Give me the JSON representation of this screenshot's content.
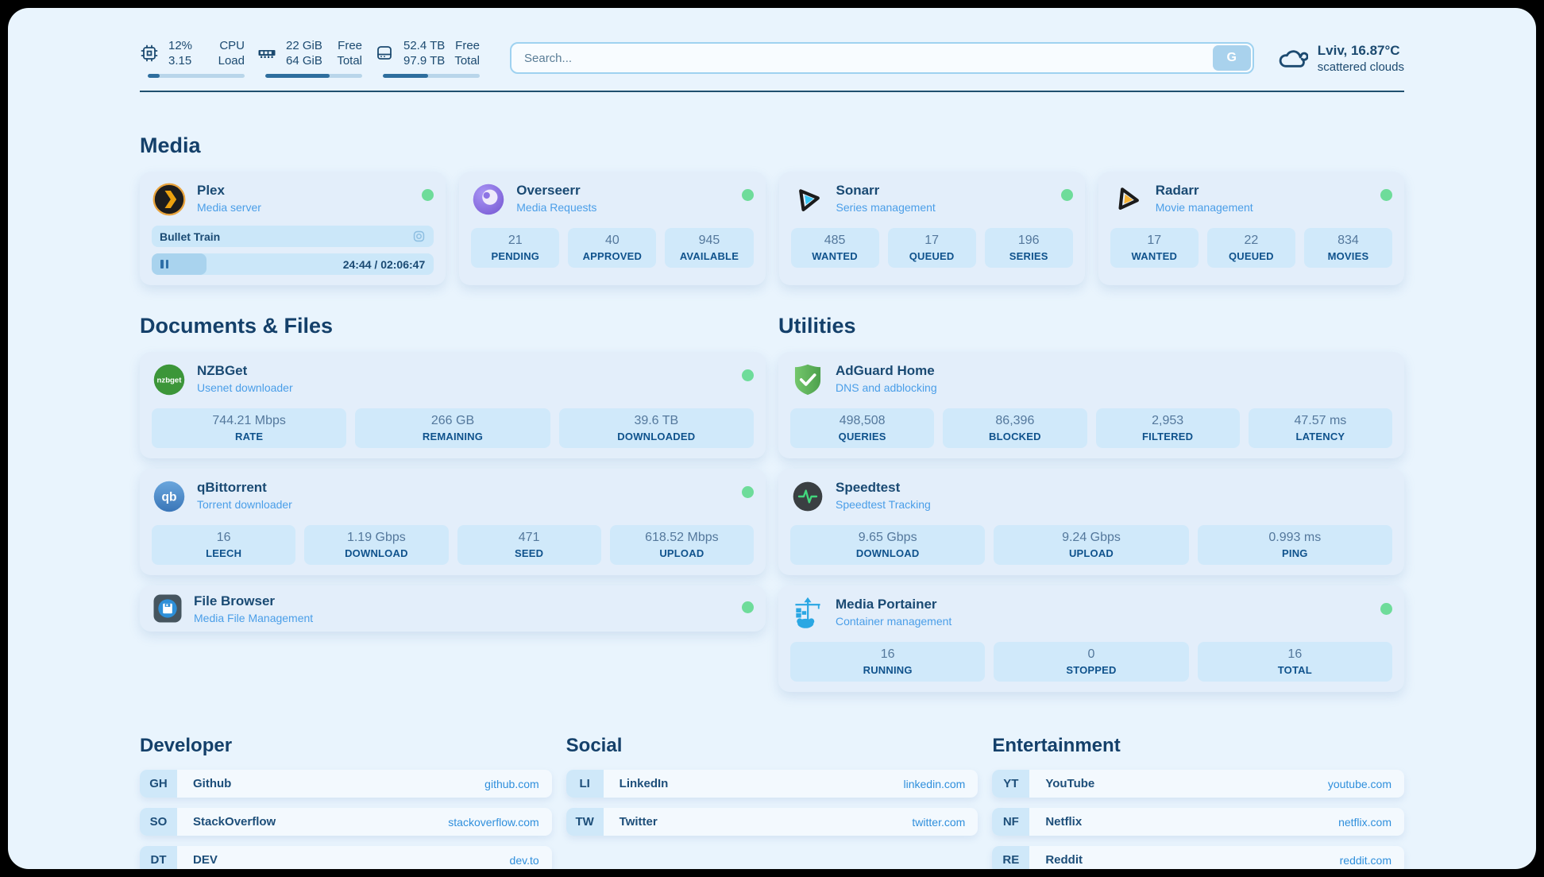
{
  "header": {
    "stats": [
      {
        "icon": "cpu-icon",
        "value1": "12%",
        "value2": "3.15",
        "label1": "CPU",
        "label2": "Load",
        "used_pct": 12
      },
      {
        "icon": "ram-icon",
        "value1": "22 GiB",
        "value2": "64 GiB",
        "label1": "Free",
        "label2": "Total",
        "used_pct": 66
      },
      {
        "icon": "disk-icon",
        "value1": "52.4 TB",
        "value2": "97.9 TB",
        "label1": "Free",
        "label2": "Total",
        "used_pct": 47
      }
    ],
    "search": {
      "placeholder": "Search...",
      "button_label": "G"
    },
    "weather": {
      "location_temp": "Lviv, 16.87°C",
      "condition": "scattered clouds"
    }
  },
  "media": {
    "title": "Media",
    "plex": {
      "name": "Plex",
      "subtitle": "Media server",
      "now_playing": "Bullet Train",
      "time": "24:44 / 02:06:47",
      "progress_pct": 19.5
    },
    "overseerr": {
      "name": "Overseerr",
      "subtitle": "Media Requests",
      "stats": [
        {
          "value": "21",
          "label": "PENDING"
        },
        {
          "value": "40",
          "label": "APPROVED"
        },
        {
          "value": "945",
          "label": "AVAILABLE"
        }
      ]
    },
    "sonarr": {
      "name": "Sonarr",
      "subtitle": "Series management",
      "stats": [
        {
          "value": "485",
          "label": "WANTED"
        },
        {
          "value": "17",
          "label": "QUEUED"
        },
        {
          "value": "196",
          "label": "SERIES"
        }
      ]
    },
    "radarr": {
      "name": "Radarr",
      "subtitle": "Movie management",
      "stats": [
        {
          "value": "17",
          "label": "WANTED"
        },
        {
          "value": "22",
          "label": "QUEUED"
        },
        {
          "value": "834",
          "label": "MOVIES"
        }
      ]
    }
  },
  "documents": {
    "title": "Documents & Files",
    "nzbget": {
      "name": "NZBGet",
      "subtitle": "Usenet downloader",
      "stats": [
        {
          "value": "744.21 Mbps",
          "label": "RATE"
        },
        {
          "value": "266 GB",
          "label": "REMAINING"
        },
        {
          "value": "39.6 TB",
          "label": "DOWNLOADED"
        }
      ]
    },
    "qbittorrent": {
      "name": "qBittorrent",
      "subtitle": "Torrent downloader",
      "stats": [
        {
          "value": "16",
          "label": "LEECH"
        },
        {
          "value": "1.19 Gbps",
          "label": "DOWNLOAD"
        },
        {
          "value": "471",
          "label": "SEED"
        },
        {
          "value": "618.52 Mbps",
          "label": "UPLOAD"
        }
      ]
    },
    "filebrowser": {
      "name": "File Browser",
      "subtitle": "Media File Management"
    }
  },
  "utilities": {
    "title": "Utilities",
    "adguard": {
      "name": "AdGuard Home",
      "subtitle": "DNS and adblocking",
      "stats": [
        {
          "value": "498,508",
          "label": "QUERIES"
        },
        {
          "value": "86,396",
          "label": "BLOCKED"
        },
        {
          "value": "2,953",
          "label": "FILTERED"
        },
        {
          "value": "47.57 ms",
          "label": "LATENCY"
        }
      ]
    },
    "speedtest": {
      "name": "Speedtest",
      "subtitle": "Speedtest Tracking",
      "stats": [
        {
          "value": "9.65 Gbps",
          "label": "DOWNLOAD"
        },
        {
          "value": "9.24 Gbps",
          "label": "UPLOAD"
        },
        {
          "value": "0.993 ms",
          "label": "PING"
        }
      ]
    },
    "portainer": {
      "name": "Media Portainer",
      "subtitle": "Container management",
      "stats": [
        {
          "value": "16",
          "label": "RUNNING"
        },
        {
          "value": "0",
          "label": "STOPPED"
        },
        {
          "value": "16",
          "label": "TOTAL"
        }
      ]
    }
  },
  "links": {
    "developer": {
      "title": "Developer",
      "items": [
        {
          "abbr": "GH",
          "label": "Github",
          "url": "github.com"
        },
        {
          "abbr": "SO",
          "label": "StackOverflow",
          "url": "stackoverflow.com"
        },
        {
          "abbr": "DT",
          "label": "DEV",
          "url": "dev.to"
        }
      ]
    },
    "social": {
      "title": "Social",
      "items": [
        {
          "abbr": "LI",
          "label": "LinkedIn",
          "url": "linkedin.com"
        },
        {
          "abbr": "TW",
          "label": "Twitter",
          "url": "twitter.com"
        }
      ]
    },
    "entertainment": {
      "title": "Entertainment",
      "items": [
        {
          "abbr": "YT",
          "label": "YouTube",
          "url": "youtube.com"
        },
        {
          "abbr": "NF",
          "label": "Netflix",
          "url": "netflix.com"
        },
        {
          "abbr": "RE",
          "label": "Reddit",
          "url": "reddit.com"
        }
      ]
    }
  },
  "icons": {
    "nzbget_text": "nzbget",
    "qb_text": "qb"
  },
  "colors": {
    "accent": "#2f8fdc",
    "status_online": "#6edc9a"
  }
}
